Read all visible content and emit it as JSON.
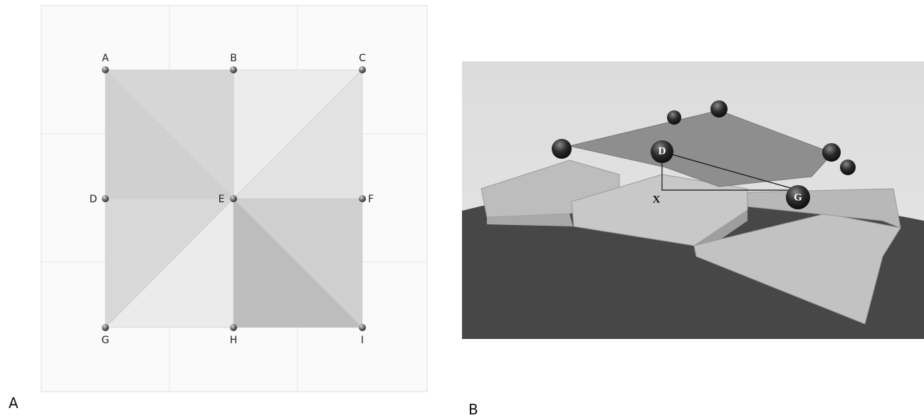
{
  "panel_a": {
    "label": "A",
    "points": [
      "A",
      "B",
      "C",
      "D",
      "E",
      "F",
      "G",
      "H",
      "I"
    ]
  },
  "panel_b": {
    "label": "B",
    "labels": [
      "D",
      "X",
      "G"
    ]
  }
}
